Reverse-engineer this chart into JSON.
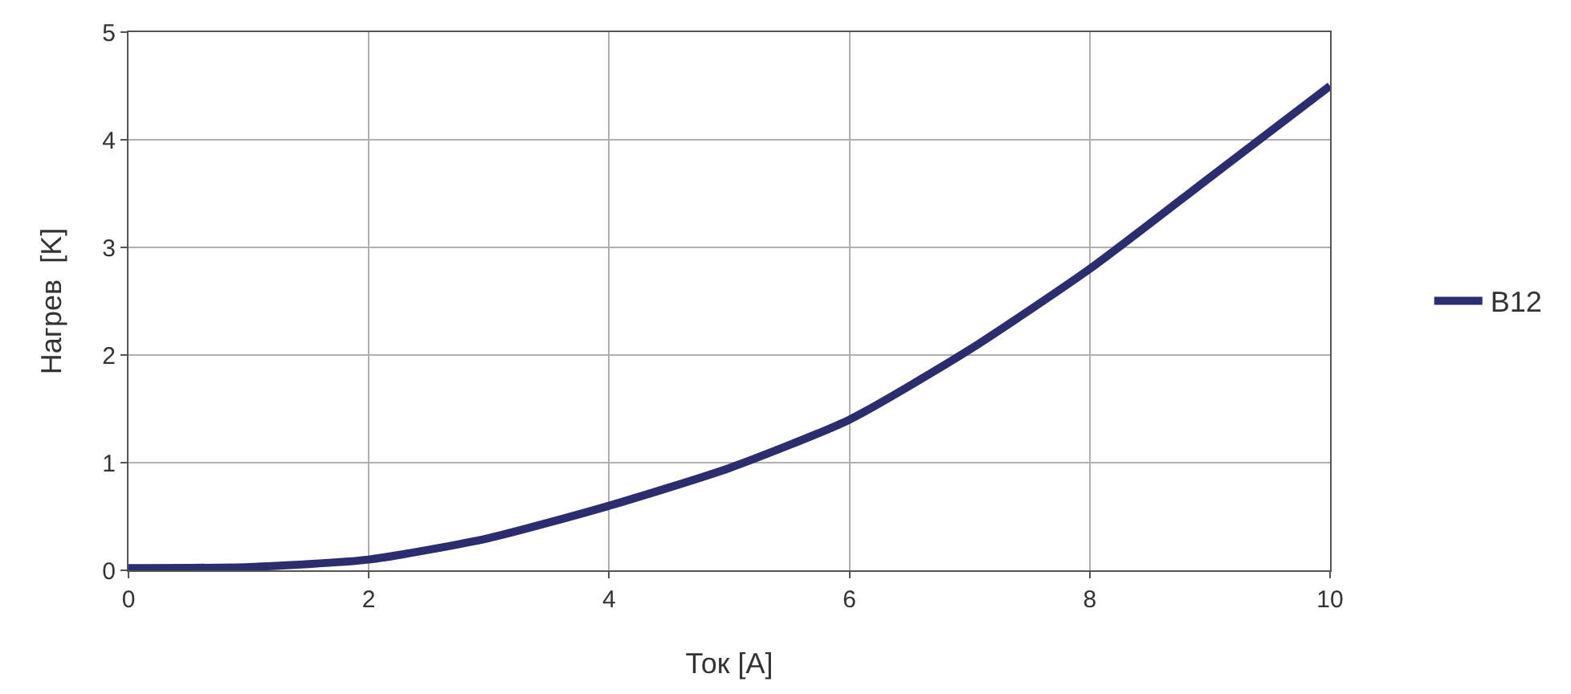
{
  "chart_data": {
    "type": "line",
    "xlabel": "Ток [A]",
    "ylabel": "Нагрев  [K]",
    "x": [
      0,
      1,
      2,
      3,
      4,
      5,
      6,
      7,
      8,
      9,
      10
    ],
    "series": [
      {
        "name": "B12",
        "color": "#2b2d6e",
        "values": [
          0.02,
          0.03,
          0.1,
          0.3,
          0.6,
          0.95,
          1.4,
          2.05,
          2.8,
          3.65,
          4.5
        ]
      }
    ],
    "xlim": [
      0,
      10
    ],
    "xticks": [
      0,
      2,
      4,
      6,
      8,
      10
    ],
    "ylim": [
      0,
      5
    ],
    "yticks": [
      0,
      1,
      2,
      3,
      4,
      5
    ],
    "grid": true,
    "legend": "right",
    "marker": "none",
    "line_style": "solid"
  }
}
